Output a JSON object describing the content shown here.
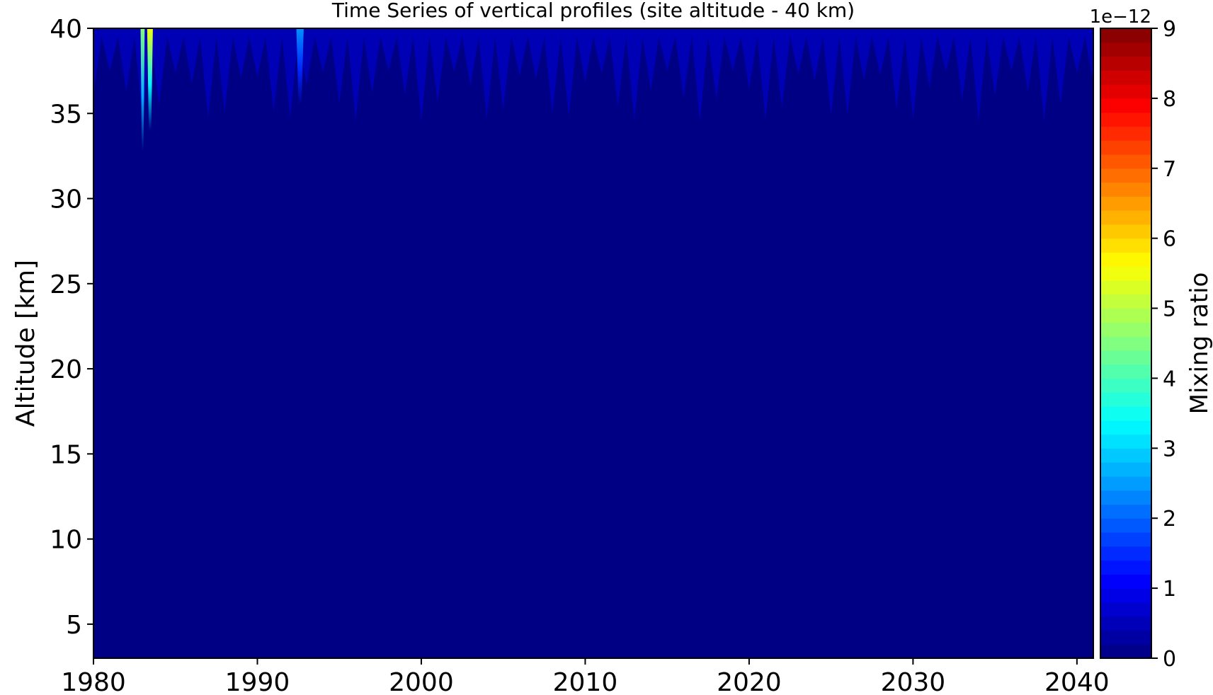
{
  "chart_data": {
    "type": "heatmap",
    "title": "Time Series of vertical profiles (site altitude - 40 km)",
    "xlabel": "",
    "ylabel": "Altitude [km]",
    "xlim": [
      1980,
      2041
    ],
    "ylim": [
      3,
      40
    ],
    "xticks": [
      1980,
      1990,
      2000,
      2010,
      2020,
      2030,
      2040
    ],
    "yticks": [
      5,
      10,
      15,
      20,
      25,
      30,
      35,
      40
    ],
    "colorbar": {
      "label": "Mixing ratio",
      "offset_text": "1e−12",
      "range": [
        0,
        9
      ],
      "ticks": [
        0,
        1,
        2,
        3,
        4,
        5,
        6,
        7,
        8,
        9
      ],
      "levels": 45,
      "colormap": "jet"
    },
    "background_value": 0.05,
    "features": [
      {
        "year": 1983.0,
        "width_years": 0.25,
        "top_km": 40,
        "bottom_km": 32.8,
        "value": 4.5
      },
      {
        "year": 1983.45,
        "width_years": 0.35,
        "top_km": 40,
        "bottom_km": 34.0,
        "value": 5.5
      },
      {
        "year": 1992.6,
        "width_years": 0.45,
        "top_km": 40,
        "bottom_km": 35.5,
        "value": 2.4
      }
    ],
    "seasonal_top_band": {
      "value": 0.8,
      "min_depth_km": 2.5,
      "max_depth_km": 5.5,
      "period_years": 0.5
    }
  }
}
